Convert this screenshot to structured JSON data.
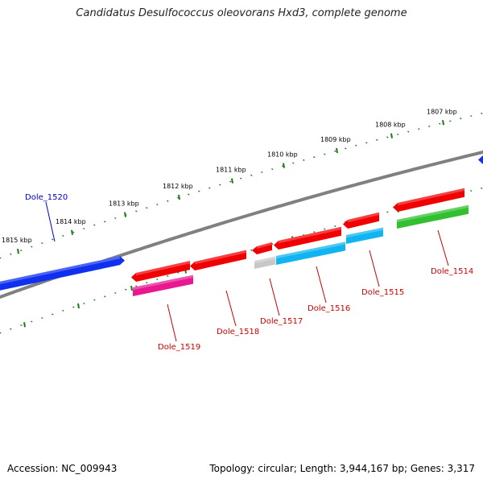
{
  "title": "Candidatus Desulfococcus oleovorans Hxd3, complete genome",
  "footer": {
    "accession": "Accession: NC_009943",
    "summary": "Topology: circular; Length: 3,944,167 bp; Genes: 3,317"
  },
  "colors": {
    "backbone": "#808080",
    "tick": "#1a7a1a",
    "forward_strand": "#1030f0",
    "label_forward": "#0000cc",
    "label_reverse": "#cc0000"
  },
  "kbp_ticks": [
    "1807 kbp",
    "1808 kbp",
    "1809 kbp",
    "1810 kbp",
    "1811 kbp",
    "1812 kbp",
    "1813 kbp",
    "1814 kbp",
    "1815 kbp"
  ],
  "genes": [
    {
      "name": "Dole_1520",
      "strand": "forward",
      "color": "#1030f0"
    },
    {
      "name": "Dole_1519",
      "strand": "reverse",
      "color": "#e81890"
    },
    {
      "name": "Dole_1518",
      "strand": "reverse",
      "color": "#f00000"
    },
    {
      "name": "Dole_1517",
      "strand": "reverse",
      "color": "#c8c8c8"
    },
    {
      "name": "Dole_1516",
      "strand": "reverse",
      "color": "#10b4f0"
    },
    {
      "name": "Dole_1515",
      "strand": "reverse",
      "color": "#10b4f0"
    },
    {
      "name": "Dole_1514",
      "strand": "reverse",
      "color": "#30c030"
    }
  ]
}
